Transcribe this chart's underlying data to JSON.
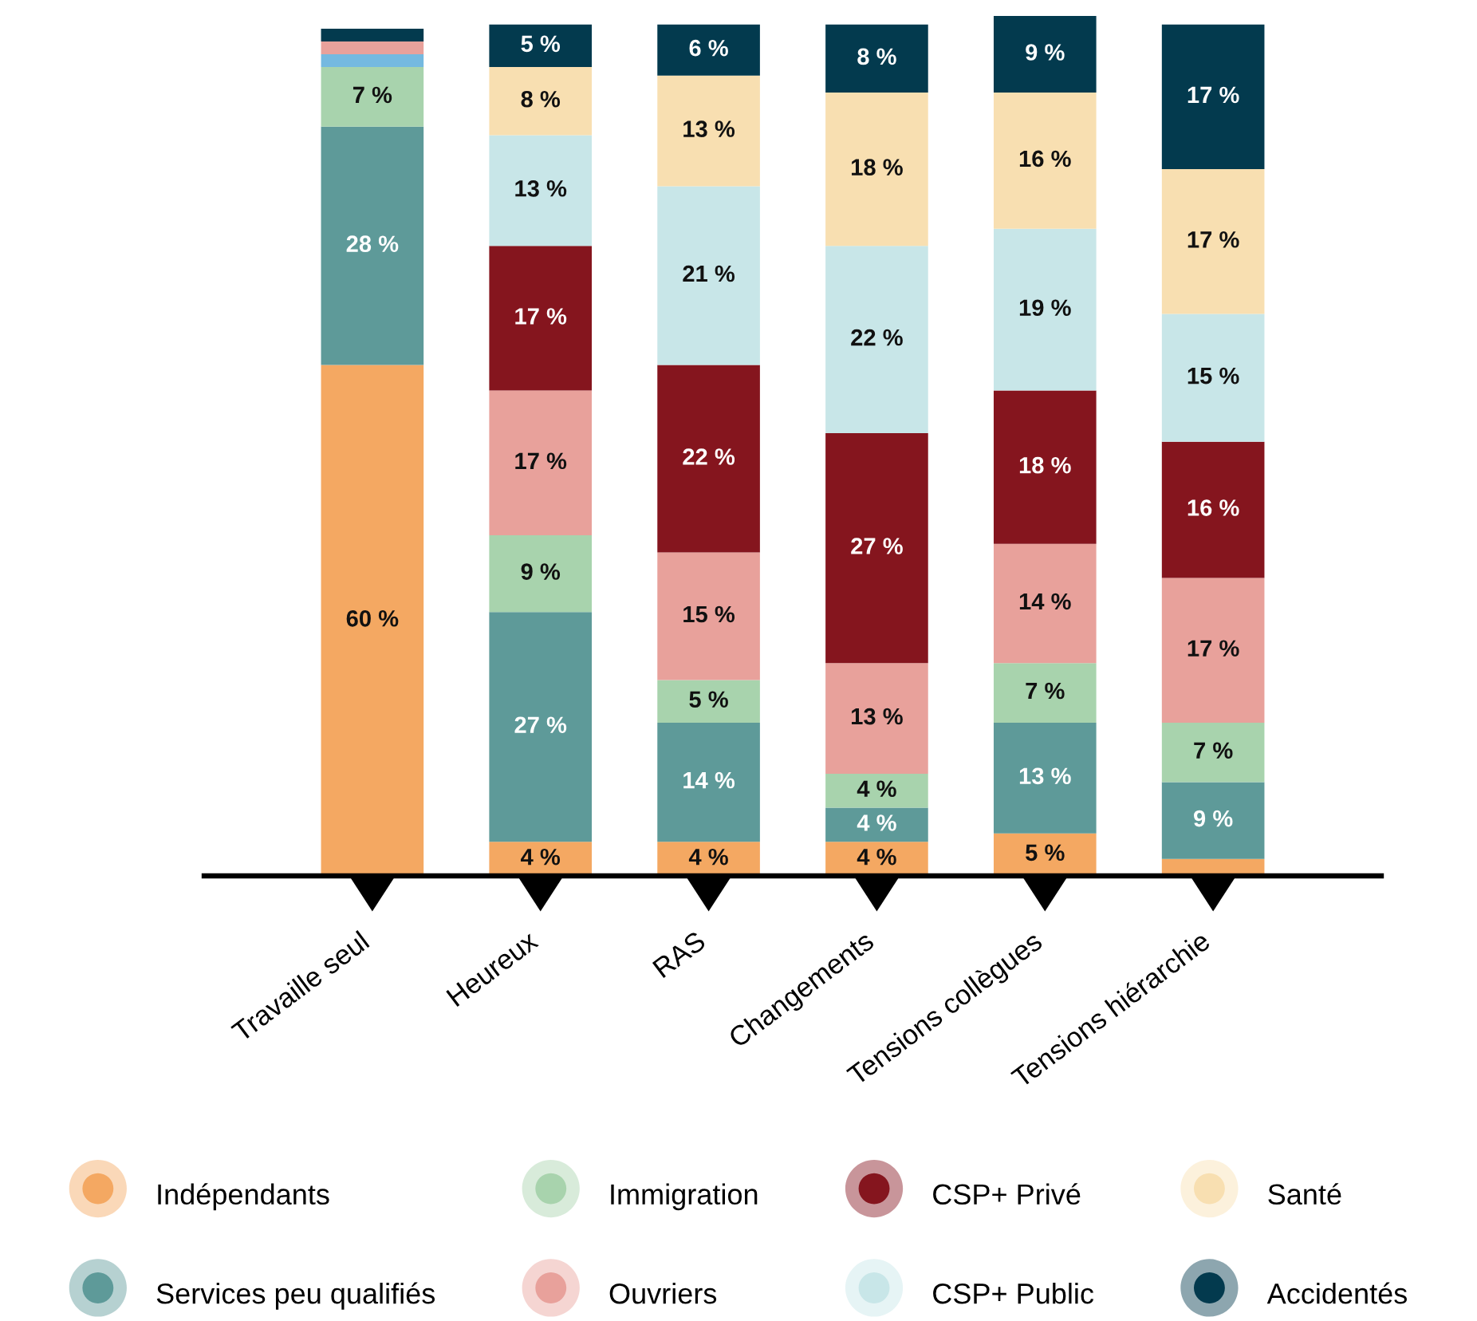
{
  "chart_data": {
    "type": "bar",
    "stacked": true,
    "categories": [
      "Travaille seul",
      "Heureux",
      "RAS",
      "Changements",
      "Tensions collègues",
      "Tensions hiérarchie"
    ],
    "ylim": [
      0,
      101
    ],
    "tick_labels": "x",
    "legend": "bottom",
    "series": [
      {
        "name": "Indépendants",
        "color": "#f4a862",
        "values": [
          60,
          4,
          4,
          4,
          5,
          2
        ],
        "value_labels": [
          "60 %",
          "4 %",
          "4 %",
          "4 %",
          "5 %",
          null
        ]
      },
      {
        "name": "Services peu qualifiés",
        "color": "#5e9a99",
        "values": [
          28,
          27,
          14,
          4,
          13,
          9
        ],
        "value_labels": [
          "28 %",
          "27 %",
          "14 %",
          "4 %",
          "13 %",
          "9 %"
        ]
      },
      {
        "name": "Immigration",
        "color": "#a8d3ad",
        "values": [
          7,
          9,
          5,
          4,
          7,
          7
        ],
        "value_labels": [
          "7 %",
          "9 %",
          "5 %",
          "4 %",
          "7 %",
          "7 %"
        ]
      },
      {
        "color": "#75b9e0",
        "values": [
          1.5,
          null,
          null,
          null,
          null,
          null
        ]
      },
      {
        "name": "Ouvriers",
        "color": "#e8a19b",
        "values": [
          1.5,
          17,
          15,
          13,
          14,
          17
        ],
        "value_labels": [
          null,
          "17 %",
          "15 %",
          "13 %",
          "14 %",
          "17 %"
        ]
      },
      {
        "name": "CSP+ Privé",
        "color": "#85151e",
        "values": [
          null,
          17,
          22,
          27,
          18,
          16
        ],
        "value_labels": [
          null,
          "17 %",
          "22 %",
          "27 %",
          "18 %",
          "16 %"
        ]
      },
      {
        "name": "CSP+ Public",
        "color": "#c8e6e8",
        "values": [
          null,
          13,
          21,
          22,
          19,
          15
        ],
        "value_labels": [
          null,
          "13 %",
          "21 %",
          "22 %",
          "19 %",
          "15 %"
        ]
      },
      {
        "name": "Santé",
        "color": "#f8dfb1",
        "values": [
          null,
          8,
          13,
          18,
          16,
          17
        ],
        "value_labels": [
          null,
          "8 %",
          "13 %",
          "18 %",
          "16 %",
          "17 %"
        ]
      },
      {
        "name": "Accidentés",
        "color": "#033a4e",
        "values": [
          1.5,
          5,
          6,
          8,
          9,
          17
        ],
        "value_labels": [
          null,
          "5 %",
          "6 %",
          "8 %",
          "9 %",
          "17 %"
        ]
      }
    ]
  }
}
